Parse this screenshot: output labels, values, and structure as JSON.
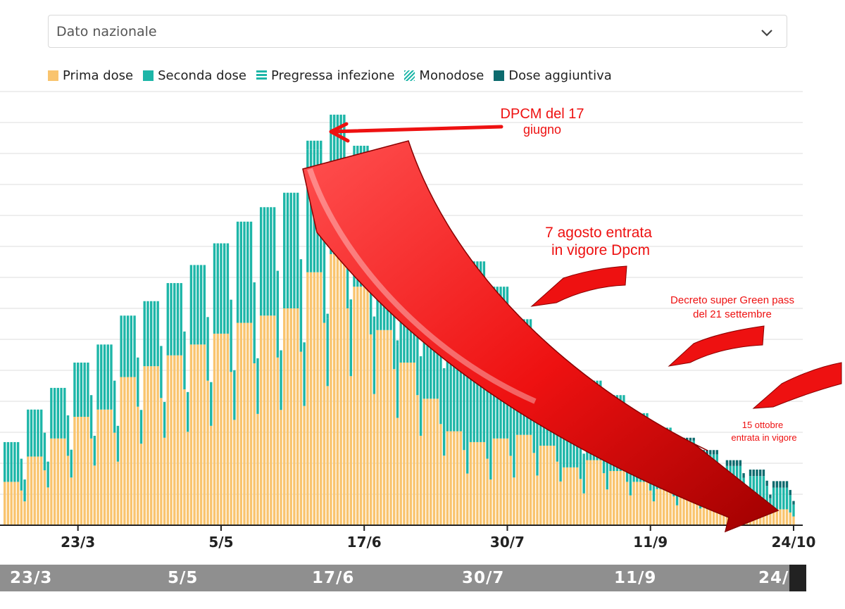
{
  "dropdown": {
    "value": "Dato nazionale",
    "icon": "chevron-down-icon"
  },
  "legend": [
    {
      "label": "Prima dose",
      "color": "#f9c46e",
      "pattern": "solid"
    },
    {
      "label": "Seconda dose",
      "color": "#1db6a8",
      "pattern": "solid"
    },
    {
      "label": "Pregressa infezione",
      "color": "#1db6a8",
      "pattern": "dashed"
    },
    {
      "label": "Monodose",
      "color": "#1db6a8",
      "pattern": "hatched"
    },
    {
      "label": "Dose aggiuntiva",
      "color": "#0d6b6e",
      "pattern": "solid"
    }
  ],
  "annotations": {
    "dpcm_17_giugno": [
      "DPCM del 17",
      "giugno"
    ],
    "agosto": [
      "7 agosto entrata",
      "in vigore Dpcm"
    ],
    "green_pass": [
      "Decreto super Green pass",
      "del 21 settembre"
    ],
    "ottobre": [
      "15 ottobre",
      "entrata in vigore"
    ]
  },
  "scrubber": {
    "ticks": [
      "23/3",
      "5/5",
      "17/6",
      "30/7",
      "11/9",
      "24/"
    ]
  },
  "chart_data": {
    "type": "bar",
    "stacked": true,
    "x_ticks": [
      "23/3",
      "5/5",
      "17/6",
      "30/7",
      "11/9",
      "24/10"
    ],
    "x_start": "2021-03-01",
    "x_end": "2021-10-24",
    "ylim": [
      0,
      600000
    ],
    "grid": true,
    "weekly_prima": [
      {
        "week_of": "2021-03-01",
        "value": 60000
      },
      {
        "week_of": "2021-03-08",
        "value": 95000
      },
      {
        "week_of": "2021-03-15",
        "value": 120000
      },
      {
        "week_of": "2021-03-22",
        "value": 150000
      },
      {
        "week_of": "2021-03-29",
        "value": 160000
      },
      {
        "week_of": "2021-04-05",
        "value": 205000
      },
      {
        "week_of": "2021-04-12",
        "value": 220000
      },
      {
        "week_of": "2021-04-19",
        "value": 235000
      },
      {
        "week_of": "2021-04-26",
        "value": 250000
      },
      {
        "week_of": "2021-05-03",
        "value": 265000
      },
      {
        "week_of": "2021-05-10",
        "value": 280000
      },
      {
        "week_of": "2021-05-17",
        "value": 290000
      },
      {
        "week_of": "2021-05-24",
        "value": 300000
      },
      {
        "week_of": "2021-05-31",
        "value": 350000
      },
      {
        "week_of": "2021-06-07",
        "value": 375000
      },
      {
        "week_of": "2021-06-14",
        "value": 330000
      },
      {
        "week_of": "2021-06-21",
        "value": 270000
      },
      {
        "week_of": "2021-06-28",
        "value": 225000
      },
      {
        "week_of": "2021-07-05",
        "value": 175000
      },
      {
        "week_of": "2021-07-12",
        "value": 130000
      },
      {
        "week_of": "2021-07-19",
        "value": 115000
      },
      {
        "week_of": "2021-07-26",
        "value": 120000
      },
      {
        "week_of": "2021-08-02",
        "value": 125000
      },
      {
        "week_of": "2021-08-09",
        "value": 110000
      },
      {
        "week_of": "2021-08-16",
        "value": 80000
      },
      {
        "week_of": "2021-08-23",
        "value": 90000
      },
      {
        "week_of": "2021-08-30",
        "value": 75000
      },
      {
        "week_of": "2021-09-06",
        "value": 60000
      },
      {
        "week_of": "2021-09-13",
        "value": 50000
      },
      {
        "week_of": "2021-09-20",
        "value": 42000
      },
      {
        "week_of": "2021-09-27",
        "value": 38000
      },
      {
        "week_of": "2021-10-04",
        "value": 32000
      },
      {
        "week_of": "2021-10-11",
        "value": 28000
      },
      {
        "week_of": "2021-10-18",
        "value": 22000
      }
    ],
    "weekly_seconda": [
      {
        "week_of": "2021-03-01",
        "value": 55000
      },
      {
        "week_of": "2021-03-08",
        "value": 65000
      },
      {
        "week_of": "2021-03-15",
        "value": 70000
      },
      {
        "week_of": "2021-03-22",
        "value": 75000
      },
      {
        "week_of": "2021-03-29",
        "value": 90000
      },
      {
        "week_of": "2021-04-05",
        "value": 85000
      },
      {
        "week_of": "2021-04-12",
        "value": 90000
      },
      {
        "week_of": "2021-04-19",
        "value": 100000
      },
      {
        "week_of": "2021-04-26",
        "value": 110000
      },
      {
        "week_of": "2021-05-03",
        "value": 125000
      },
      {
        "week_of": "2021-05-10",
        "value": 140000
      },
      {
        "week_of": "2021-05-17",
        "value": 150000
      },
      {
        "week_of": "2021-05-24",
        "value": 160000
      },
      {
        "week_of": "2021-05-31",
        "value": 170000
      },
      {
        "week_of": "2021-06-07",
        "value": 175000
      },
      {
        "week_of": "2021-06-14",
        "value": 180000
      },
      {
        "week_of": "2021-06-21",
        "value": 185000
      },
      {
        "week_of": "2021-06-28",
        "value": 200000
      },
      {
        "week_of": "2021-07-05",
        "value": 220000
      },
      {
        "week_of": "2021-07-12",
        "value": 255000
      },
      {
        "week_of": "2021-07-19",
        "value": 250000
      },
      {
        "week_of": "2021-07-26",
        "value": 210000
      },
      {
        "week_of": "2021-08-02",
        "value": 160000
      },
      {
        "week_of": "2021-08-09",
        "value": 120000
      },
      {
        "week_of": "2021-08-16",
        "value": 100000
      },
      {
        "week_of": "2021-08-23",
        "value": 110000
      },
      {
        "week_of": "2021-08-30",
        "value": 105000
      },
      {
        "week_of": "2021-09-06",
        "value": 95000
      },
      {
        "week_of": "2021-09-13",
        "value": 85000
      },
      {
        "week_of": "2021-09-20",
        "value": 75000
      },
      {
        "week_of": "2021-09-27",
        "value": 60000
      },
      {
        "week_of": "2021-10-04",
        "value": 50000
      },
      {
        "week_of": "2021-10-11",
        "value": 40000
      },
      {
        "week_of": "2021-10-18",
        "value": 30000
      }
    ],
    "weekly_extra": [
      {
        "week_of": "2021-05-31",
        "value": 12000
      },
      {
        "week_of": "2021-06-07",
        "value": 18000
      },
      {
        "week_of": "2021-06-14",
        "value": 15000
      },
      {
        "week_of": "2021-06-21",
        "value": 10000
      },
      {
        "week_of": "2021-09-20",
        "value": 4000
      },
      {
        "week_of": "2021-09-27",
        "value": 6000
      },
      {
        "week_of": "2021-10-04",
        "value": 8000
      },
      {
        "week_of": "2021-10-11",
        "value": 9000
      },
      {
        "week_of": "2021-10-18",
        "value": 9000
      }
    ]
  }
}
